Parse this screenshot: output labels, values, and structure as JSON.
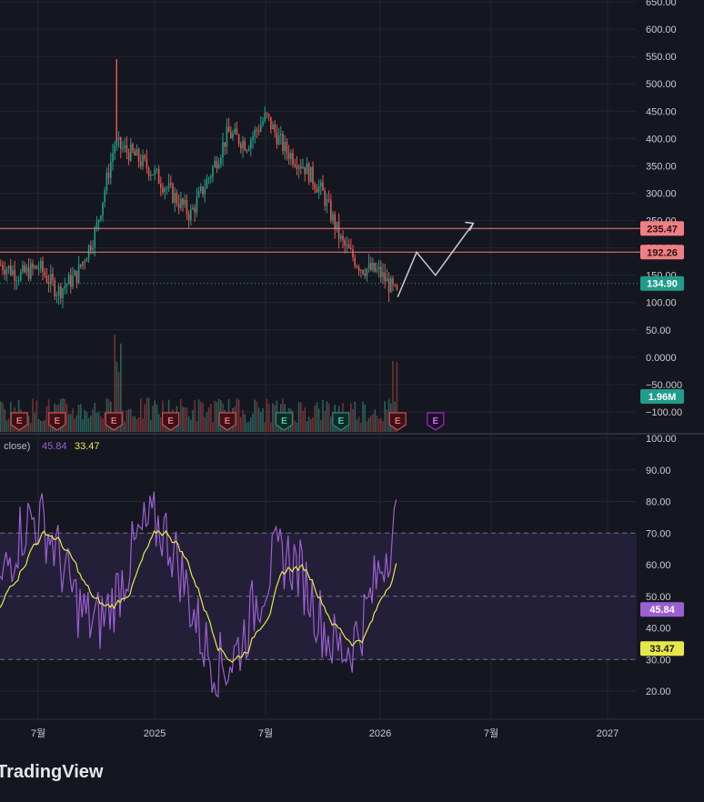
{
  "brand": "TradingView",
  "chart_data": [
    {
      "type": "candlestick",
      "pane": "price",
      "y_ticks": [
        "650.00",
        "600.00",
        "550.00",
        "500.00",
        "450.00",
        "400.00",
        "350.00",
        "300.00",
        "250.00",
        "200.00",
        "150.00",
        "100.00",
        "50.00",
        "0.0000",
        "−50.000",
        "−100.00"
      ],
      "x_ticks": [
        "7월",
        "2025",
        "7월",
        "2026",
        "7월",
        "2027"
      ],
      "ylim": [
        -100,
        650
      ],
      "approx_close_path": [
        {
          "x": "2024-04",
          "y": 110
        },
        {
          "x": "2024-05",
          "y": 170
        },
        {
          "x": "2024-06",
          "y": 150
        },
        {
          "x": "2024-07",
          "y": 165
        },
        {
          "x": "2024-08",
          "y": 120
        },
        {
          "x": "2024-09",
          "y": 150
        },
        {
          "x": "2024-10",
          "y": 230
        },
        {
          "x": "2024-11",
          "y": 390
        },
        {
          "x": "2024-12",
          "y": 370
        },
        {
          "x": "2025-01",
          "y": 340
        },
        {
          "x": "2025-02",
          "y": 300
        },
        {
          "x": "2025-03",
          "y": 260
        },
        {
          "x": "2025-04",
          "y": 330
        },
        {
          "x": "2025-05",
          "y": 410
        },
        {
          "x": "2025-06",
          "y": 390
        },
        {
          "x": "2025-07",
          "y": 440
        },
        {
          "x": "2025-08",
          "y": 380
        },
        {
          "x": "2025-09",
          "y": 350
        },
        {
          "x": "2025-10",
          "y": 300
        },
        {
          "x": "2025-11",
          "y": 210
        },
        {
          "x": "2025-12",
          "y": 165
        },
        {
          "x": "2026-01",
          "y": 155
        },
        {
          "x": "2026-02",
          "y": 110
        }
      ],
      "price_labels": [
        {
          "value": "235.47",
          "color": "#f07f84"
        },
        {
          "value": "192.26",
          "color": "#f07f84"
        },
        {
          "value": "134.90",
          "color": "#1f9d8a"
        }
      ],
      "horizontal_lines": [
        235.47,
        192.26
      ],
      "dotted_line": 134.9,
      "projection_path": [
        {
          "x": "2026-02",
          "y": 110
        },
        {
          "x": "2026-03",
          "y": 192
        },
        {
          "x": "2026-04",
          "y": 150
        },
        {
          "x": "2026-06",
          "y": 245
        }
      ]
    },
    {
      "type": "bar",
      "pane": "volume",
      "volume_label": "1.96M",
      "earnings_markers": [
        {
          "x": "2024-06",
          "label": "E",
          "style": "past-red"
        },
        {
          "x": "2024-08",
          "label": "E",
          "style": "past-red"
        },
        {
          "x": "2024-11",
          "label": "E",
          "style": "past-red"
        },
        {
          "x": "2025-02",
          "label": "E",
          "style": "past-red"
        },
        {
          "x": "2025-05",
          "label": "E",
          "style": "past-red"
        },
        {
          "x": "2025-08",
          "label": "E",
          "style": "past-green"
        },
        {
          "x": "2025-11",
          "label": "E",
          "style": "past-green"
        },
        {
          "x": "2026-02",
          "label": "E",
          "style": "past-red"
        },
        {
          "x": "2026-04",
          "label": "E",
          "style": "future"
        }
      ]
    },
    {
      "type": "line",
      "pane": "rsi",
      "legend_text": ", close)",
      "legend_values": [
        "45.84",
        "33.47"
      ],
      "y_ticks": [
        "100.00",
        "90.00",
        "80.00",
        "70.00",
        "60.00",
        "50.00",
        "40.00",
        "30.00",
        "20.00"
      ],
      "ylim": [
        13,
        100
      ],
      "band": [
        30,
        70
      ],
      "midline": 50,
      "series": [
        {
          "values_label": "45.84",
          "color": "#9c5fd1"
        },
        {
          "values_label": "33.47",
          "color": "#e6e84a"
        }
      ]
    }
  ],
  "colors": {
    "background": "#151720",
    "grid": "#23262f",
    "up": "#1f9d8a",
    "down": "#e0574f",
    "rsi": "#9c5fd1",
    "rsi_ma": "#e6e84a",
    "band_fill": "#231f38",
    "axis_text": "#c9cbd1"
  }
}
